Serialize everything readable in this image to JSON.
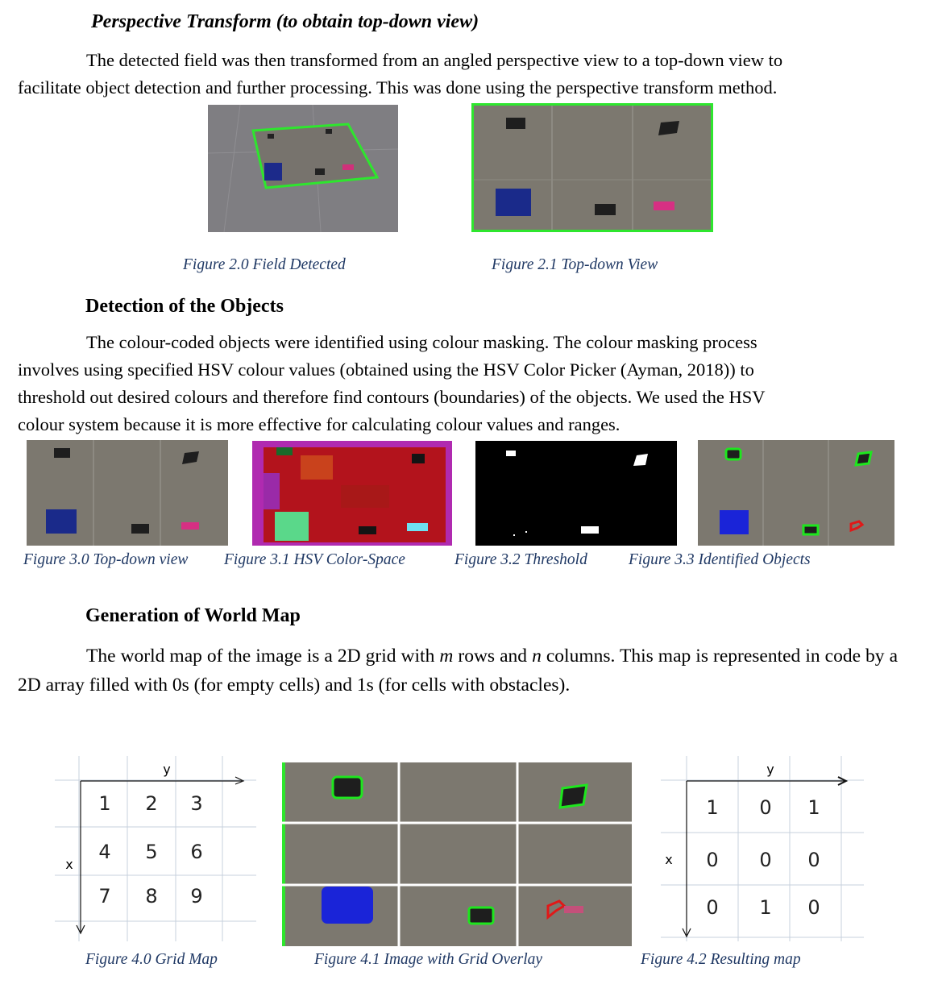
{
  "section1": {
    "heading": "Perspective Transform (to obtain top-down view)",
    "para_line1": "The detected field was then transformed from an angled perspective view to a top-down view to",
    "para_line2": "facilitate object detection and further processing. This was done using the perspective transform method.",
    "captions": [
      "Figure 2.0 Field Detected",
      "Figure 2.1 Top-down View"
    ]
  },
  "section2": {
    "heading": "Detection of the Objects",
    "para_lines": [
      "The colour-coded objects were identified using colour masking. The colour masking process",
      "involves using specified HSV colour values (obtained using the HSV Color Picker (Ayman, 2018)) to",
      "threshold out desired colours and therefore find contours (boundaries) of the objects. We used the HSV",
      "colour system because it is more effective for calculating colour values and ranges."
    ],
    "captions": [
      "Figure 3.0 Top-down view",
      "Figure 3.1 HSV Color-Space",
      "Figure 3.2 Threshold",
      "Figure 3.3 Identified Objects"
    ]
  },
  "section3": {
    "heading": "Generation of World Map",
    "para": {
      "p1": "The world map of the image is a 2D grid with ",
      "m": "m",
      "p2": " rows and ",
      "n": "n",
      "p3": " columns. This map is represented in code by a 2D array filled with 0s (for empty cells) and 1s (for cells with obstacles)."
    },
    "grid_map": {
      "axis_x": "x",
      "axis_y": "y",
      "cells": [
        "1",
        "2",
        "3",
        "4",
        "5",
        "6",
        "7",
        "8",
        "9"
      ]
    },
    "result_map": {
      "axis_x": "x",
      "axis_y": "y",
      "cells": [
        "1",
        "0",
        "1",
        "0",
        "0",
        "0",
        "0",
        "1",
        "0"
      ]
    },
    "captions": [
      "Figure 4.0 Grid Map",
      "Figure 4.1 Image with Grid Overlay",
      "Figure 4.2 Resulting map"
    ]
  },
  "colors": {
    "caption": "#1f3864",
    "contour_green": "#1ee61e",
    "contour_blue": "#1a24d8",
    "contour_red": "#e01818",
    "hsv_red": "#b3131c",
    "hsv_magenta": "#b02ab0"
  }
}
